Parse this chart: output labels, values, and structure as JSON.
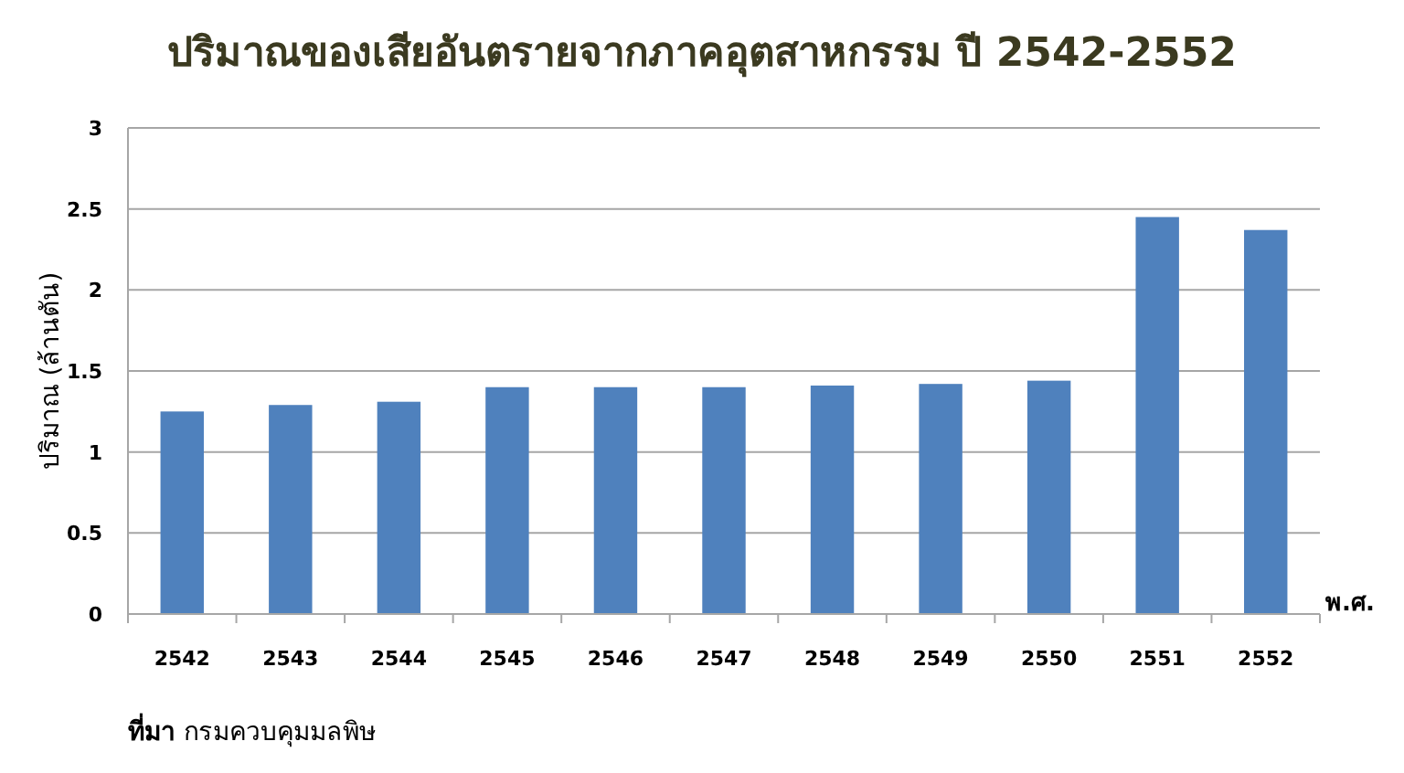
{
  "chart_data": {
    "type": "bar",
    "title": "ปริมาณของเสียอันตรายจากภาคอุตสาหกรรม ปี 2542-2552",
    "xlabel": "พ.ศ.",
    "ylabel": "ปริมาณ (ล้านตัน)",
    "categories": [
      "2542",
      "2543",
      "2544",
      "2545",
      "2546",
      "2547",
      "2548",
      "2549",
      "2550",
      "2551",
      "2552"
    ],
    "values": [
      1.25,
      1.29,
      1.31,
      1.4,
      1.4,
      1.4,
      1.41,
      1.42,
      1.44,
      2.45,
      2.37
    ],
    "color": "#4f81bd",
    "ylim": [
      0,
      3
    ],
    "yticks": [
      0,
      0.5,
      1,
      1.5,
      2,
      2.5,
      3
    ],
    "grid": "y",
    "annotations": [
      "**ที่มา** กรมควบคุมมลพิษ"
    ]
  }
}
